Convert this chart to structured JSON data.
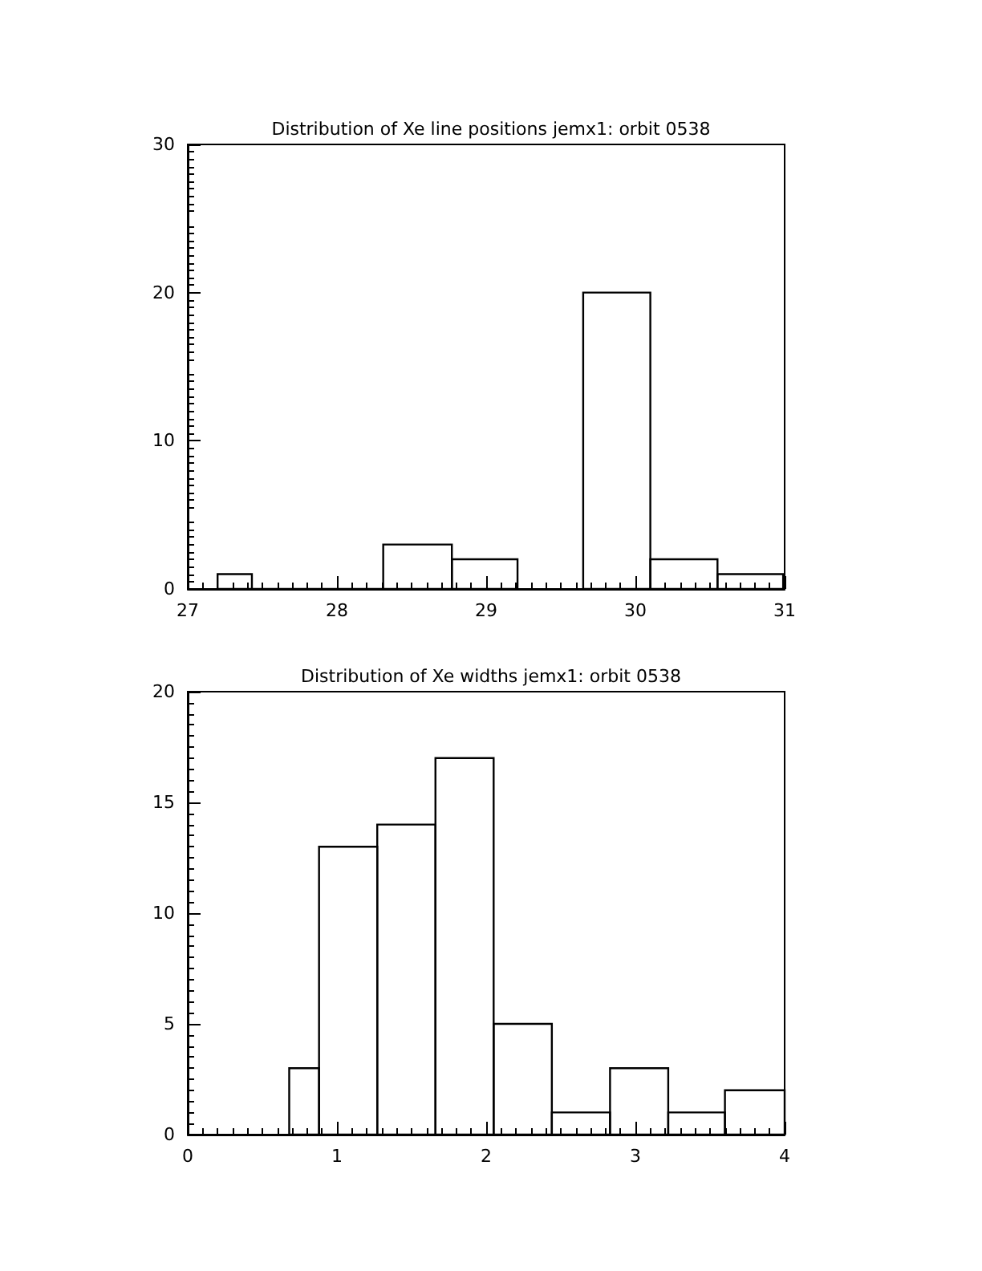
{
  "chart_data": [
    {
      "type": "histogram",
      "title": "Distribution of Xe line positions jemx1: orbit 0538",
      "bins": [
        27.2,
        27.43,
        27.87,
        28.31,
        28.77,
        29.21,
        29.65,
        30.1,
        30.55,
        30.99
      ],
      "values": [
        1,
        0,
        0,
        3,
        2,
        null,
        20,
        2,
        1
      ],
      "color": "#000000",
      "xlim": [
        27,
        31
      ],
      "xticks": [
        27,
        28,
        29,
        30,
        31
      ],
      "ylim": [
        0,
        30
      ],
      "yticks": [
        0,
        10,
        20,
        30
      ],
      "grid": false
    },
    {
      "type": "histogram",
      "title": "Distribution of Xe widths jemx1: orbit 0538",
      "bins": [
        0.68,
        0.88,
        1.27,
        1.66,
        2.05,
        2.44,
        2.83,
        3.22,
        3.6,
        4.0
      ],
      "values": [
        3,
        13,
        14,
        17,
        5,
        1,
        3,
        1,
        2
      ],
      "color": "#000000",
      "xlim": [
        0,
        4
      ],
      "xticks": [
        0,
        1,
        2,
        3,
        4
      ],
      "ylim": [
        0,
        20
      ],
      "yticks": [
        0,
        5,
        10,
        15,
        20
      ],
      "grid": false
    }
  ]
}
